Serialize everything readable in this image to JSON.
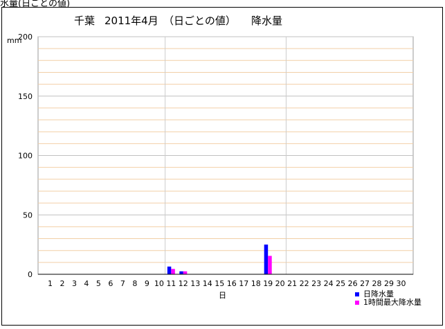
{
  "header_cut_text": "水量(日ごとの値)",
  "chart_data": {
    "type": "bar",
    "station": "千葉",
    "period": "2011年4月",
    "title_note": "（日ごとの値）",
    "metric": "降水量",
    "ylabel": "mm",
    "xlabel": "日",
    "ylim": [
      0,
      200
    ],
    "yticks": [
      0,
      50,
      100,
      150,
      200
    ],
    "grid": true,
    "legend": "bottom-right",
    "categories": [
      "1",
      "2",
      "3",
      "4",
      "5",
      "6",
      "7",
      "8",
      "9",
      "10",
      "11",
      "12",
      "13",
      "14",
      "15",
      "16",
      "17",
      "18",
      "19",
      "20",
      "21",
      "22",
      "23",
      "24",
      "25",
      "26",
      "27",
      "28",
      "29",
      "30"
    ],
    "series": [
      {
        "name": "日降水量",
        "color": "#0000ff",
        "values": [
          0,
          0,
          0,
          0,
          0,
          0,
          0,
          0,
          0,
          0,
          6.5,
          2.5,
          0,
          0,
          0,
          0,
          0,
          0,
          25,
          0,
          0,
          0,
          0,
          0,
          0,
          0,
          0,
          0,
          0,
          0
        ]
      },
      {
        "name": "1時間最大降水量",
        "color": "#ff00ff",
        "values": [
          0,
          0,
          0,
          0,
          0,
          0,
          0,
          0,
          0,
          0,
          4.5,
          2.5,
          0,
          0,
          0,
          0,
          0,
          0,
          15.5,
          0,
          0,
          0,
          0,
          0,
          0,
          0,
          0,
          0,
          0,
          0
        ]
      }
    ]
  }
}
